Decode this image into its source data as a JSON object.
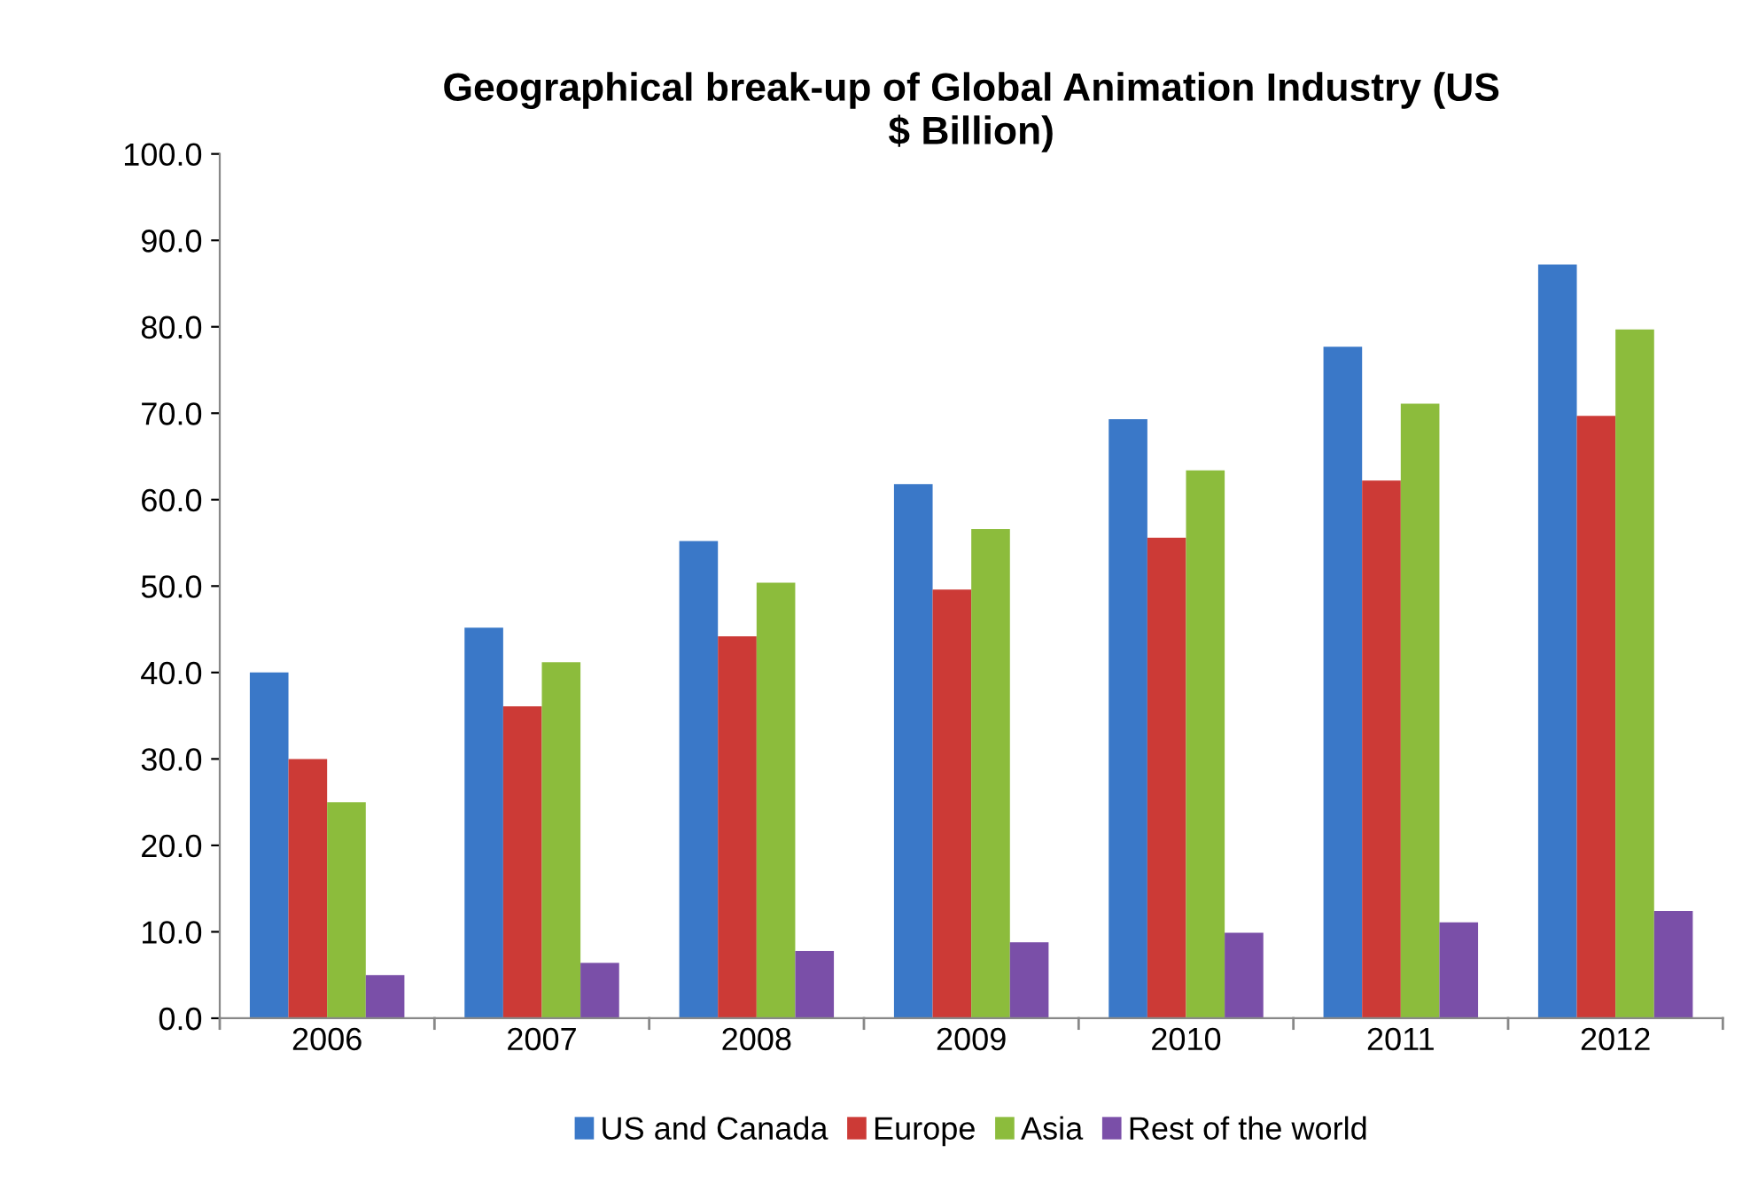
{
  "chart_data": {
    "type": "bar",
    "title": "Geographical break-up of Global Animation Industry (US\n$ Billion)",
    "categories": [
      "2006",
      "2007",
      "2008",
      "2009",
      "2010",
      "2011",
      "2012"
    ],
    "series": [
      {
        "name": "US and Canada",
        "color": "#3a78c8",
        "values": [
          40,
          45.2,
          55.2,
          61.8,
          69.3,
          77.7,
          87.2
        ]
      },
      {
        "name": "Europe",
        "color": "#cc3a36",
        "values": [
          30,
          36.1,
          44.2,
          49.6,
          55.6,
          62.2,
          69.7
        ]
      },
      {
        "name": "Asia",
        "color": "#8cbc3c",
        "values": [
          25,
          41.2,
          50.4,
          56.6,
          63.4,
          71.1,
          79.7
        ]
      },
      {
        "name": "Rest of the world",
        "color": "#7a4fa8",
        "values": [
          5,
          6.4,
          7.8,
          8.8,
          9.9,
          11.1,
          12.4
        ]
      }
    ],
    "ylim": [
      0,
      100
    ],
    "yticks": [
      {
        "value": 0,
        "label": "0.0"
      },
      {
        "value": 10,
        "label": "10.0"
      },
      {
        "value": 20,
        "label": "20.0"
      },
      {
        "value": 30,
        "label": "30.0"
      },
      {
        "value": 40,
        "label": "40.0"
      },
      {
        "value": 50,
        "label": "50.0"
      },
      {
        "value": 60,
        "label": "60.0"
      },
      {
        "value": 70,
        "label": "70.0"
      },
      {
        "value": 80,
        "label": "80.0"
      },
      {
        "value": 90,
        "label": "90.0"
      },
      {
        "value": 100,
        "label": "100.0"
      }
    ],
    "grid": false,
    "legend": "bottom"
  }
}
